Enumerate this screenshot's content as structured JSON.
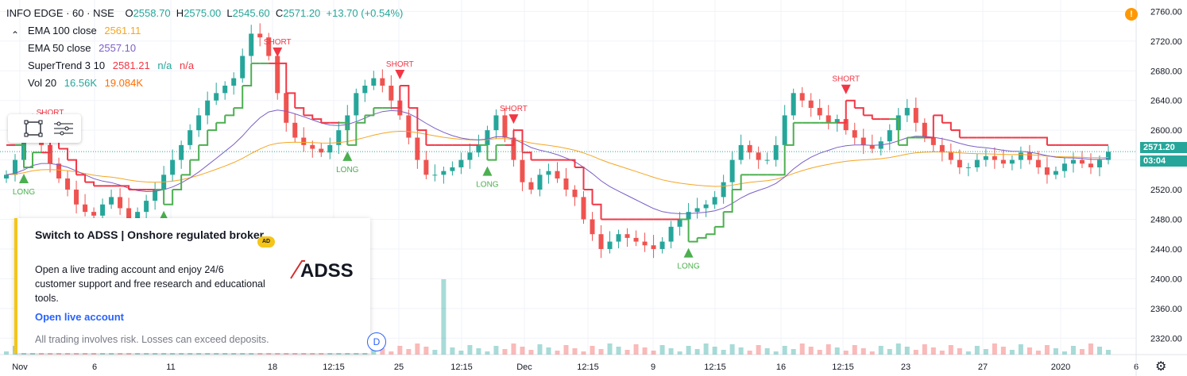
{
  "header": {
    "symbol": "INFO EDGE · 60 · NSE",
    "open_label": "O",
    "open": "2558.70",
    "high_label": "H",
    "high": "2575.00",
    "low_label": "L",
    "low": "2545.60",
    "close_label": "C",
    "close": "2571.20",
    "change": "+13.70 (+0.54%)"
  },
  "indicators": [
    {
      "name": "EMA 100 close",
      "values": [
        "2561.11"
      ],
      "colors": [
        "#f5a623"
      ]
    },
    {
      "name": "EMA 50 close",
      "values": [
        "2557.10"
      ],
      "colors": [
        "#7b5fc7"
      ]
    },
    {
      "name": "SuperTrend 3 10",
      "values": [
        "2581.21",
        "n/a",
        "n/a"
      ],
      "colors": [
        "#f23645",
        "#26a69a",
        "#f23645"
      ]
    },
    {
      "name": "Vol 20",
      "values": [
        "16.56K",
        "19.084K"
      ],
      "colors": [
        "#26a69a",
        "#ff6d00"
      ]
    }
  ],
  "price_axis": {
    "ticks": [
      "2760.00",
      "2720.00",
      "2680.00",
      "2640.00",
      "2600.00",
      "2560.00",
      "2520.00",
      "2480.00",
      "2440.00",
      "2400.00",
      "2360.00",
      "2320.00"
    ],
    "last_price_tag": "2571.20",
    "countdown_tag": "03:04"
  },
  "time_axis": {
    "ticks": [
      "Nov",
      "6",
      "11",
      "18",
      "12:15",
      "25",
      "12:15",
      "Dec",
      "12:15",
      "9",
      "12:15",
      "16",
      "12:15",
      "23",
      "27",
      "2020",
      "6"
    ]
  },
  "ad": {
    "title": "Switch to ADSS | Onshore regulated broker",
    "badge": "AD",
    "body": "Open a live trading account and enjoy 24/6 customer support and free research and educational tools.",
    "logo_text": "ADSS",
    "link": "Open live account",
    "disclaimer": "All trading involves risk. Losses can exceed deposits."
  },
  "misc": {
    "d_button": "D",
    "alert": "!",
    "settings_icon": "gear-icon"
  },
  "signals": [
    "SHORT",
    "SHORT",
    "LONG",
    "SHORT",
    "LONG",
    "LONG",
    "SHORT",
    "SHORT",
    "LONG",
    "SHORT"
  ],
  "colors": {
    "up": "#26a69a",
    "down": "#ef5350",
    "supertrend_up": "#4caf50",
    "supertrend_down": "#f23645",
    "ema100": "#f5a623",
    "ema50": "#7b5fc7",
    "last_price": "#26a69a"
  },
  "chart_data": {
    "type": "candlestick",
    "ylim": [
      2300,
      2770
    ],
    "grid": true,
    "close_series": [
      2540,
      2560,
      2590,
      2610,
      2580,
      2555,
      2535,
      2520,
      2500,
      2490,
      2485,
      2500,
      2510,
      2495,
      2480,
      2490,
      2505,
      2520,
      2540,
      2560,
      2580,
      2600,
      2620,
      2640,
      2650,
      2660,
      2670,
      2700,
      2730,
      2725,
      2700,
      2650,
      2610,
      2590,
      2580,
      2575,
      2570,
      2580,
      2600,
      2620,
      2650,
      2660,
      2670,
      2660,
      2640,
      2620,
      2590,
      2560,
      2540,
      2540,
      2545,
      2550,
      2560,
      2570,
      2580,
      2600,
      2620,
      2590,
      2560,
      2530,
      2520,
      2540,
      2545,
      2535,
      2520,
      2510,
      2480,
      2460,
      2440,
      2450,
      2460,
      2455,
      2450,
      2445,
      2440,
      2450,
      2470,
      2480,
      2490,
      2495,
      2500,
      2510,
      2530,
      2560,
      2580,
      2570,
      2560,
      2560,
      2580,
      2620,
      2650,
      2640,
      2630,
      2620,
      2610,
      2615,
      2600,
      2590,
      2580,
      2575,
      2585,
      2600,
      2620,
      2630,
      2610,
      2590,
      2580,
      2570,
      2560,
      2550,
      2550,
      2560,
      2565,
      2560,
      2555,
      2560,
      2570,
      2560,
      2550,
      2540,
      2545,
      2555,
      2560,
      2555,
      2550,
      2560,
      2571
    ],
    "volume_spike_index": 50
  }
}
